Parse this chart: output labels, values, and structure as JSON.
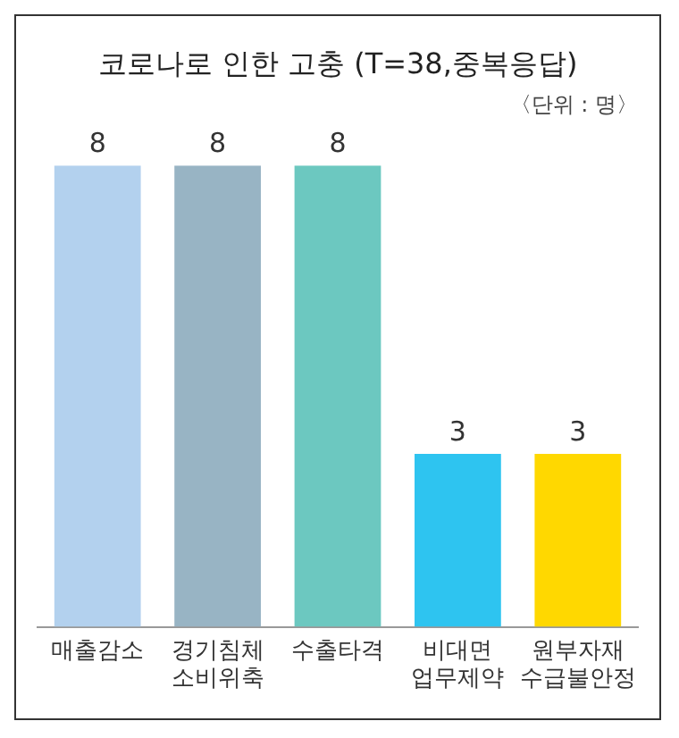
{
  "chart_data": {
    "type": "bar",
    "title": "코로나로 인한 고충 (T=38,중복응답)",
    "subtitle": "〈단위 : 명〉",
    "categories": [
      "매출감소",
      "경기침체 소비위축",
      "수출타격",
      "비대면 업무제약",
      "원부자재 수급불안정"
    ],
    "values": [
      8,
      8,
      8,
      3,
      3
    ],
    "colors": [
      "#b3d1ee",
      "#98b4c4",
      "#6cc8c0",
      "#2ec4f0",
      "#ffd800"
    ],
    "data_labels": true,
    "grid": false,
    "legend": false
  }
}
